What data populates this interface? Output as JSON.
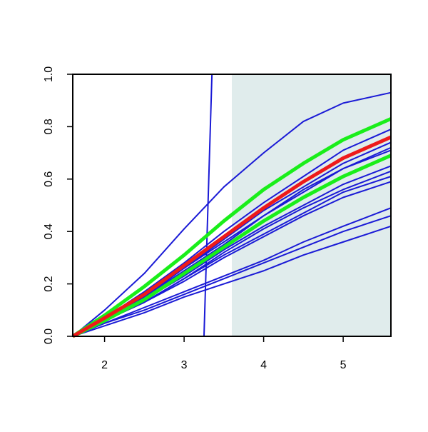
{
  "chart_data": {
    "type": "line",
    "x": [
      1.6,
      2,
      2.5,
      3,
      3.5,
      4,
      4.5,
      5,
      5.6
    ],
    "xlim": [
      1.6,
      5.6
    ],
    "ylim": [
      0,
      1
    ],
    "xticks": [
      2,
      3,
      4,
      5
    ],
    "yticks": [
      {
        "value": 0,
        "label": "0.0"
      },
      0.2,
      0.4,
      0.6,
      0.8,
      {
        "value": 1,
        "label": "1.0"
      }
    ],
    "shade": {
      "xlim": [
        3.6,
        5.6
      ],
      "color": "#e0ecec"
    },
    "series": [
      {
        "color": "#1a1ad6",
        "width": 2,
        "values": [
          0,
          0.1,
          0.24,
          0.41,
          0.57,
          0.7,
          0.82,
          0.89,
          0.93
        ]
      },
      {
        "color": "#1a1ad6",
        "width": 2,
        "values": [
          0,
          0.07,
          0.17,
          0.28,
          0.4,
          0.51,
          0.61,
          0.71,
          0.79
        ]
      },
      {
        "color": "#1a1ad6",
        "width": 2,
        "values": [
          0,
          0.07,
          0.16,
          0.26,
          0.37,
          0.48,
          0.57,
          0.66,
          0.74
        ]
      },
      {
        "color": "#1a1ad6",
        "width": 2,
        "values": [
          0,
          0.07,
          0.15,
          0.26,
          0.36,
          0.46,
          0.56,
          0.64,
          0.72
        ]
      },
      {
        "color": "#1a1ad6",
        "width": 2,
        "values": [
          0,
          0.06,
          0.15,
          0.25,
          0.35,
          0.46,
          0.55,
          0.64,
          0.71
        ]
      },
      {
        "color": "#1a1ad6",
        "width": 2,
        "values": [
          0,
          0.06,
          0.14,
          0.23,
          0.33,
          0.42,
          0.5,
          0.58,
          0.65
        ]
      },
      {
        "color": "#1a1ad6",
        "width": 2,
        "values": [
          0,
          0.06,
          0.13,
          0.22,
          0.32,
          0.41,
          0.49,
          0.56,
          0.63
        ]
      },
      {
        "color": "#1a1ad6",
        "width": 2,
        "values": [
          0,
          0.06,
          0.13,
          0.22,
          0.31,
          0.39,
          0.47,
          0.55,
          0.61
        ]
      },
      {
        "color": "#1a1ad6",
        "width": 2,
        "values": [
          0,
          0.06,
          0.13,
          0.21,
          0.3,
          0.38,
          0.46,
          0.53,
          0.59
        ]
      },
      {
        "color": "#1a1ad6",
        "width": 2,
        "values": [
          0,
          0.05,
          0.11,
          0.17,
          0.23,
          0.29,
          0.36,
          0.42,
          0.49
        ]
      },
      {
        "color": "#1a1ad6",
        "width": 2,
        "values": [
          0,
          0.05,
          0.1,
          0.16,
          0.22,
          0.28,
          0.34,
          0.4,
          0.46
        ]
      },
      {
        "color": "#1a1ad6",
        "width": 2,
        "values": [
          0,
          0.04,
          0.09,
          0.15,
          0.2,
          0.25,
          0.31,
          0.36,
          0.42
        ]
      },
      {
        "color": "#1a1ad6",
        "width": 2,
        "x": [
          1.6,
          3.25,
          3.3,
          3.35,
          5.6
        ],
        "values": [
          0,
          0,
          0.5,
          1,
          1
        ]
      },
      {
        "color": "#1aee1a",
        "width": 5,
        "values": [
          0,
          0.06,
          0.14,
          0.24,
          0.34,
          0.44,
          0.53,
          0.61,
          0.69
        ]
      },
      {
        "color": "#1aee1a",
        "width": 5,
        "values": [
          0,
          0.08,
          0.19,
          0.31,
          0.44,
          0.56,
          0.66,
          0.75,
          0.83
        ]
      },
      {
        "color": "#ee1a1a",
        "width": 5,
        "values": [
          0,
          0.07,
          0.16,
          0.27,
          0.38,
          0.49,
          0.59,
          0.68,
          0.76
        ]
      }
    ]
  }
}
